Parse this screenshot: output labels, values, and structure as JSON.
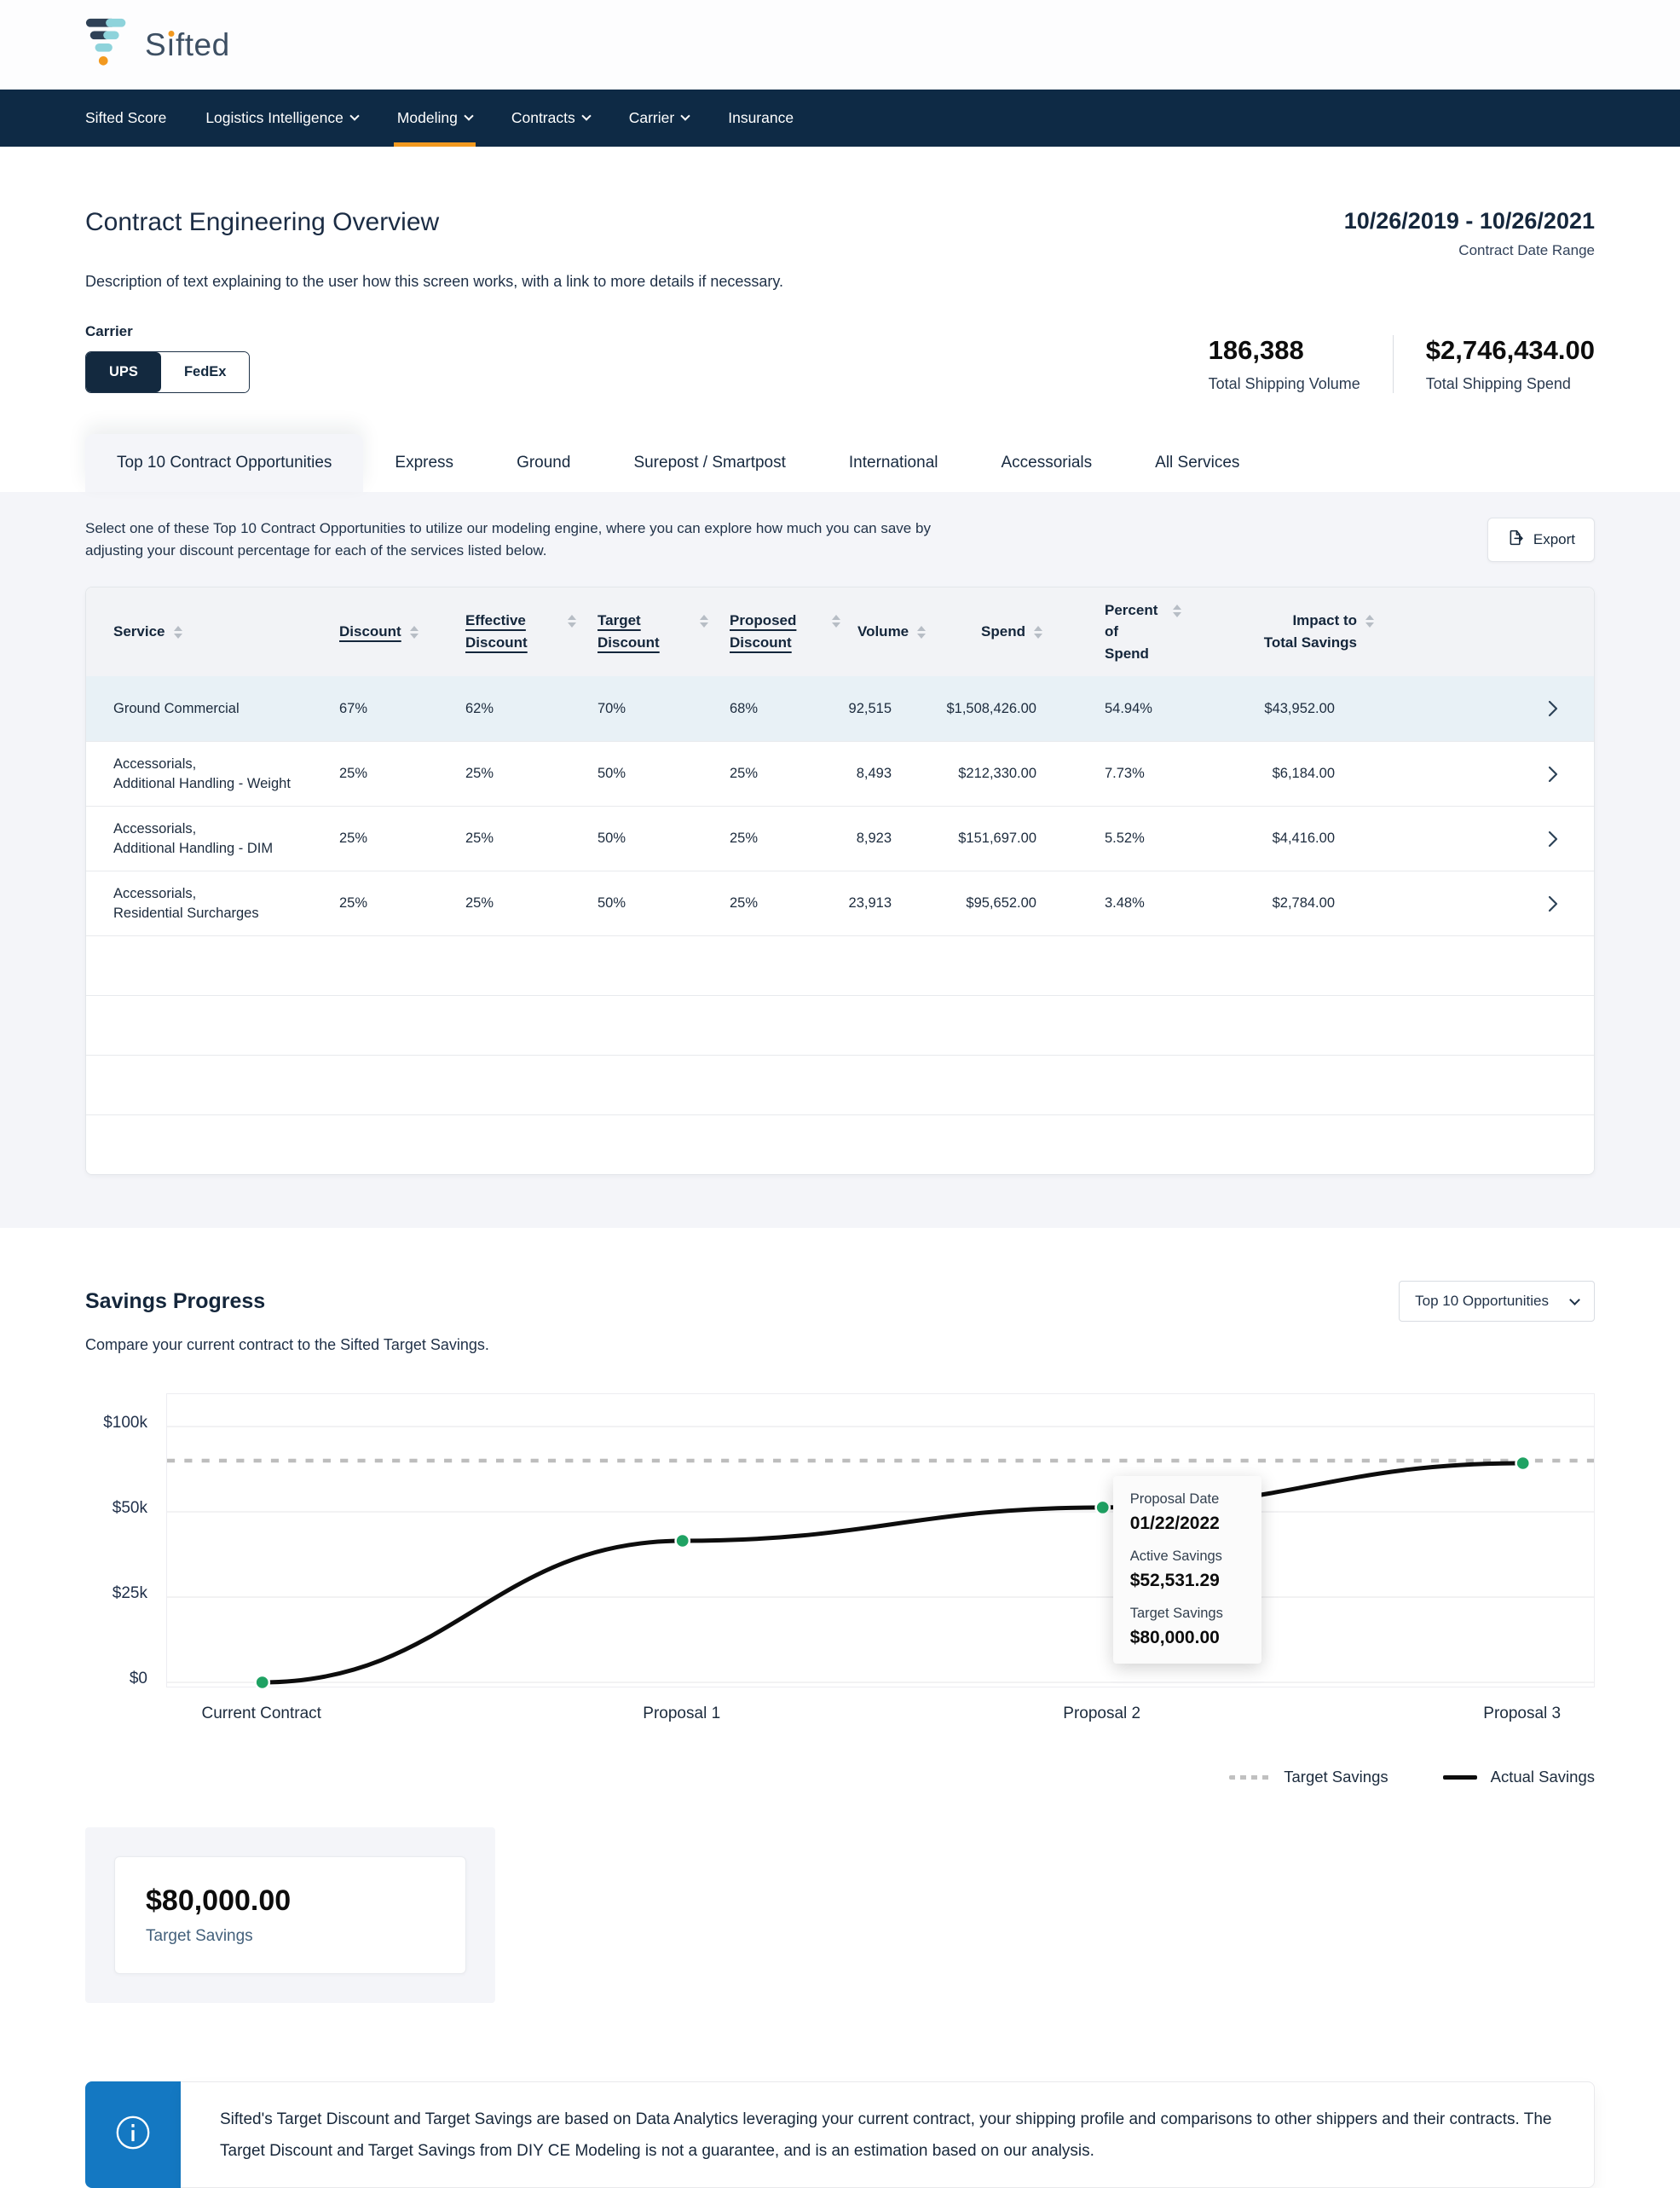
{
  "brand": {
    "name": "Sifted"
  },
  "nav": {
    "items": [
      {
        "label": "Sifted Score",
        "dropdown": false,
        "active": false
      },
      {
        "label": "Logistics Intelligence",
        "dropdown": true,
        "active": false
      },
      {
        "label": "Modeling",
        "dropdown": true,
        "active": true
      },
      {
        "label": "Contracts",
        "dropdown": true,
        "active": false
      },
      {
        "label": "Carrier",
        "dropdown": true,
        "active": false
      },
      {
        "label": "Insurance",
        "dropdown": false,
        "active": false
      }
    ]
  },
  "page": {
    "title": "Contract Engineering Overview",
    "description": "Description of text explaining to the user how this screen works, with a link to more details if necessary.",
    "date_range": "10/26/2019 - 10/26/2021",
    "date_range_label": "Contract Date Range"
  },
  "carrier_toggle": {
    "label": "Carrier",
    "options": [
      "UPS",
      "FedEx"
    ],
    "selected": "UPS"
  },
  "stats": [
    {
      "value": "186,388",
      "label": "Total Shipping Volume"
    },
    {
      "value": "$2,746,434.00",
      "label": "Total Shipping Spend"
    }
  ],
  "tabs": {
    "items": [
      "Top 10 Contract Opportunities",
      "Express",
      "Ground",
      "Surepost / Smartpost",
      "International",
      "Accessorials",
      "All Services"
    ],
    "active": "Top 10 Contract Opportunities"
  },
  "opportunities": {
    "description": "Select one of these Top 10 Contract Opportunities to utilize our modeling engine, where you can explore how much you can save by adjusting your discount percentage for each of the services listed below.",
    "export_label": "Export",
    "columns": [
      {
        "label": "Service",
        "underlined": false
      },
      {
        "label": "Discount",
        "underlined": true
      },
      {
        "label": "Effective Discount",
        "underlined": true
      },
      {
        "label": "Target Discount",
        "underlined": true
      },
      {
        "label": "Proposed Discount",
        "underlined": true
      },
      {
        "label": "Volume",
        "underlined": false
      },
      {
        "label": "Spend",
        "underlined": false
      },
      {
        "label": "Percent of Spend",
        "underlined": false
      },
      {
        "label": "Impact to Total Savings",
        "underlined": false
      }
    ],
    "rows": [
      {
        "service": [
          "Ground Commercial"
        ],
        "discount": "67%",
        "effective_discount": "62%",
        "target_discount": "70%",
        "proposed_discount": "68%",
        "volume": "92,515",
        "spend": "$1,508,426.00",
        "percent_of_spend": "54.94%",
        "impact": "$43,952.00",
        "highlighted": true
      },
      {
        "service": [
          "Accessorials,",
          "Additional Handling - Weight"
        ],
        "discount": "25%",
        "effective_discount": "25%",
        "target_discount": "50%",
        "proposed_discount": "25%",
        "volume": "8,493",
        "spend": "$212,330.00",
        "percent_of_spend": "7.73%",
        "impact": "$6,184.00",
        "highlighted": false
      },
      {
        "service": [
          "Accessorials,",
          "Additional Handling - DIM"
        ],
        "discount": "25%",
        "effective_discount": "25%",
        "target_discount": "50%",
        "proposed_discount": "25%",
        "volume": "8,923",
        "spend": "$151,697.00",
        "percent_of_spend": "5.52%",
        "impact": "$4,416.00",
        "highlighted": false
      },
      {
        "service": [
          "Accessorials,",
          "Residential Surcharges"
        ],
        "discount": "25%",
        "effective_discount": "25%",
        "target_discount": "50%",
        "proposed_discount": "25%",
        "volume": "23,913",
        "spend": "$95,652.00",
        "percent_of_spend": "3.48%",
        "impact": "$2,784.00",
        "highlighted": false
      }
    ]
  },
  "savings": {
    "title": "Savings Progress",
    "description": "Compare your current contract to the Sifted Target Savings.",
    "filter_value": "Top 10 Opportunities",
    "tooltip": {
      "date_label": "Proposal Date",
      "date_value": "01/22/2022",
      "active_label": "Active Savings",
      "active_value": "$52,531.29",
      "target_label": "Target Savings",
      "target_value": "$80,000.00"
    },
    "target_card": {
      "value": "$80,000.00",
      "label": "Target Savings"
    }
  },
  "chart_data": {
    "type": "line",
    "title": "Savings Progress",
    "x": [
      "Current Contract",
      "Proposal 1",
      "Proposal 2",
      "Proposal 3"
    ],
    "series": [
      {
        "name": "Actual Savings",
        "values": [
          0,
          41500,
          52531.29,
          78500
        ],
        "color": "#0d0d0d",
        "line_style": "solid",
        "marker_color": "#1fa263"
      },
      {
        "name": "Target Savings",
        "values": [
          80000,
          80000,
          80000,
          80000
        ],
        "color": "#bdbdbd",
        "line_style": "dashed"
      }
    ],
    "y_ticks": [
      0,
      25000,
      50000,
      100000
    ],
    "y_tick_labels": [
      "$0",
      "$25k",
      "$50k",
      "$100k"
    ],
    "ylim": [
      0,
      115000
    ],
    "grid": true,
    "legend": [
      {
        "label": "Target Savings",
        "style": "dashed"
      },
      {
        "label": "Actual Savings",
        "style": "solid"
      }
    ],
    "legend_position": "bottom-right",
    "xlabel": "",
    "ylabel": ""
  },
  "footer_note": {
    "text": "Sifted's Target Discount and Target Savings are based on Data Analytics leveraging your current contract, your shipping profile and comparisons to other shippers and their contracts. The Target Discount and Target Savings from DIY CE Modeling is not a guarantee, and is an estimation based on our analysis."
  },
  "colors": {
    "navy": "#0e2a45",
    "orange": "#f2991f",
    "teal": "#8ed3db",
    "green": "#1fa263",
    "info_blue": "#1478c2",
    "section_gray": "#f4f5f9",
    "row_highlight": "#e8f1f6"
  }
}
